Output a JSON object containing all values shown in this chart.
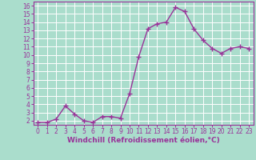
{
  "x": [
    0,
    1,
    2,
    3,
    4,
    5,
    6,
    7,
    8,
    9,
    10,
    11,
    12,
    13,
    14,
    15,
    16,
    17,
    18,
    19,
    20,
    21,
    22,
    23
  ],
  "y": [
    1.8,
    1.8,
    2.2,
    3.8,
    2.8,
    2.0,
    1.8,
    2.5,
    2.5,
    2.3,
    5.3,
    9.8,
    13.2,
    13.8,
    14.0,
    15.8,
    15.3,
    13.2,
    11.8,
    10.8,
    10.2,
    10.8,
    11.0,
    10.8
  ],
  "line_color": "#993399",
  "marker": "+",
  "markersize": 4,
  "linewidth": 1.0,
  "bg_color": "#aaddcc",
  "grid_color": "#bbddcc",
  "xlabel": "Windchill (Refroidissement éolien,°C)",
  "xlim": [
    -0.5,
    23.5
  ],
  "ylim": [
    1.5,
    16.5
  ],
  "yticks": [
    2,
    3,
    4,
    5,
    6,
    7,
    8,
    9,
    10,
    11,
    12,
    13,
    14,
    15,
    16
  ],
  "xticks": [
    0,
    1,
    2,
    3,
    4,
    5,
    6,
    7,
    8,
    9,
    10,
    11,
    12,
    13,
    14,
    15,
    16,
    17,
    18,
    19,
    20,
    21,
    22,
    23
  ],
  "tick_color": "#993399",
  "tick_fontsize": 5.5,
  "xlabel_fontsize": 6.5,
  "spine_color": "#993399",
  "grid_color_white": "#c8e8dc"
}
